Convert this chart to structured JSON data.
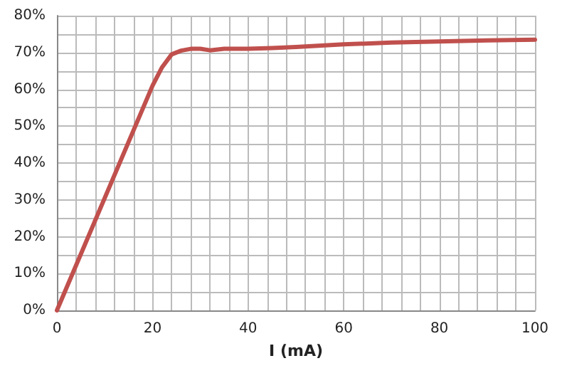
{
  "chart_data": {
    "type": "line",
    "xlabel": "I (mA)",
    "grid": true,
    "marker": "none",
    "line_style": "solid",
    "xlim": [
      0,
      100
    ],
    "xticks": [
      0,
      {
        "value": 4,
        "label": null
      },
      {
        "value": 8,
        "label": null
      },
      {
        "value": 12,
        "label": null
      },
      {
        "value": 16,
        "label": null
      },
      20,
      {
        "value": 24,
        "label": null
      },
      {
        "value": 28,
        "label": null
      },
      {
        "value": 32,
        "label": null
      },
      {
        "value": 36,
        "label": null
      },
      40,
      {
        "value": 44,
        "label": null
      },
      {
        "value": 48,
        "label": null
      },
      {
        "value": 52,
        "label": null
      },
      {
        "value": 56,
        "label": null
      },
      60,
      {
        "value": 64,
        "label": null
      },
      {
        "value": 68,
        "label": null
      },
      {
        "value": 72,
        "label": null
      },
      {
        "value": 76,
        "label": null
      },
      80,
      {
        "value": 84,
        "label": null
      },
      {
        "value": 88,
        "label": null
      },
      {
        "value": 92,
        "label": null
      },
      {
        "value": 96,
        "label": null
      },
      100
    ],
    "ylim": [
      0,
      80
    ],
    "yticks": [
      {
        "value": 0,
        "label": "0%"
      },
      {
        "value": 5,
        "label": null
      },
      {
        "value": 10,
        "label": "10%"
      },
      {
        "value": 15,
        "label": null
      },
      {
        "value": 20,
        "label": "20%"
      },
      {
        "value": 25,
        "label": null
      },
      {
        "value": 30,
        "label": "30%"
      },
      {
        "value": 35,
        "label": null
      },
      {
        "value": 40,
        "label": "40%"
      },
      {
        "value": 45,
        "label": null
      },
      {
        "value": 50,
        "label": "50%"
      },
      {
        "value": 55,
        "label": null
      },
      {
        "value": 60,
        "label": "60%"
      },
      {
        "value": 65,
        "label": null
      },
      {
        "value": 70,
        "label": "70%"
      },
      {
        "value": 75,
        "label": null
      },
      {
        "value": 80,
        "label": "80%"
      }
    ],
    "x": [
      0,
      20,
      22,
      24,
      26,
      28,
      30,
      32,
      35,
      40,
      45,
      50,
      60,
      70,
      80,
      90,
      100
    ],
    "series": [
      {
        "color": "#c0504d",
        "values": [
          0,
          61,
          66,
          69.5,
          70.5,
          71,
          71,
          70.6,
          71,
          71,
          71.2,
          71.5,
          72.2,
          72.7,
          73,
          73.3,
          73.5
        ]
      }
    ]
  }
}
